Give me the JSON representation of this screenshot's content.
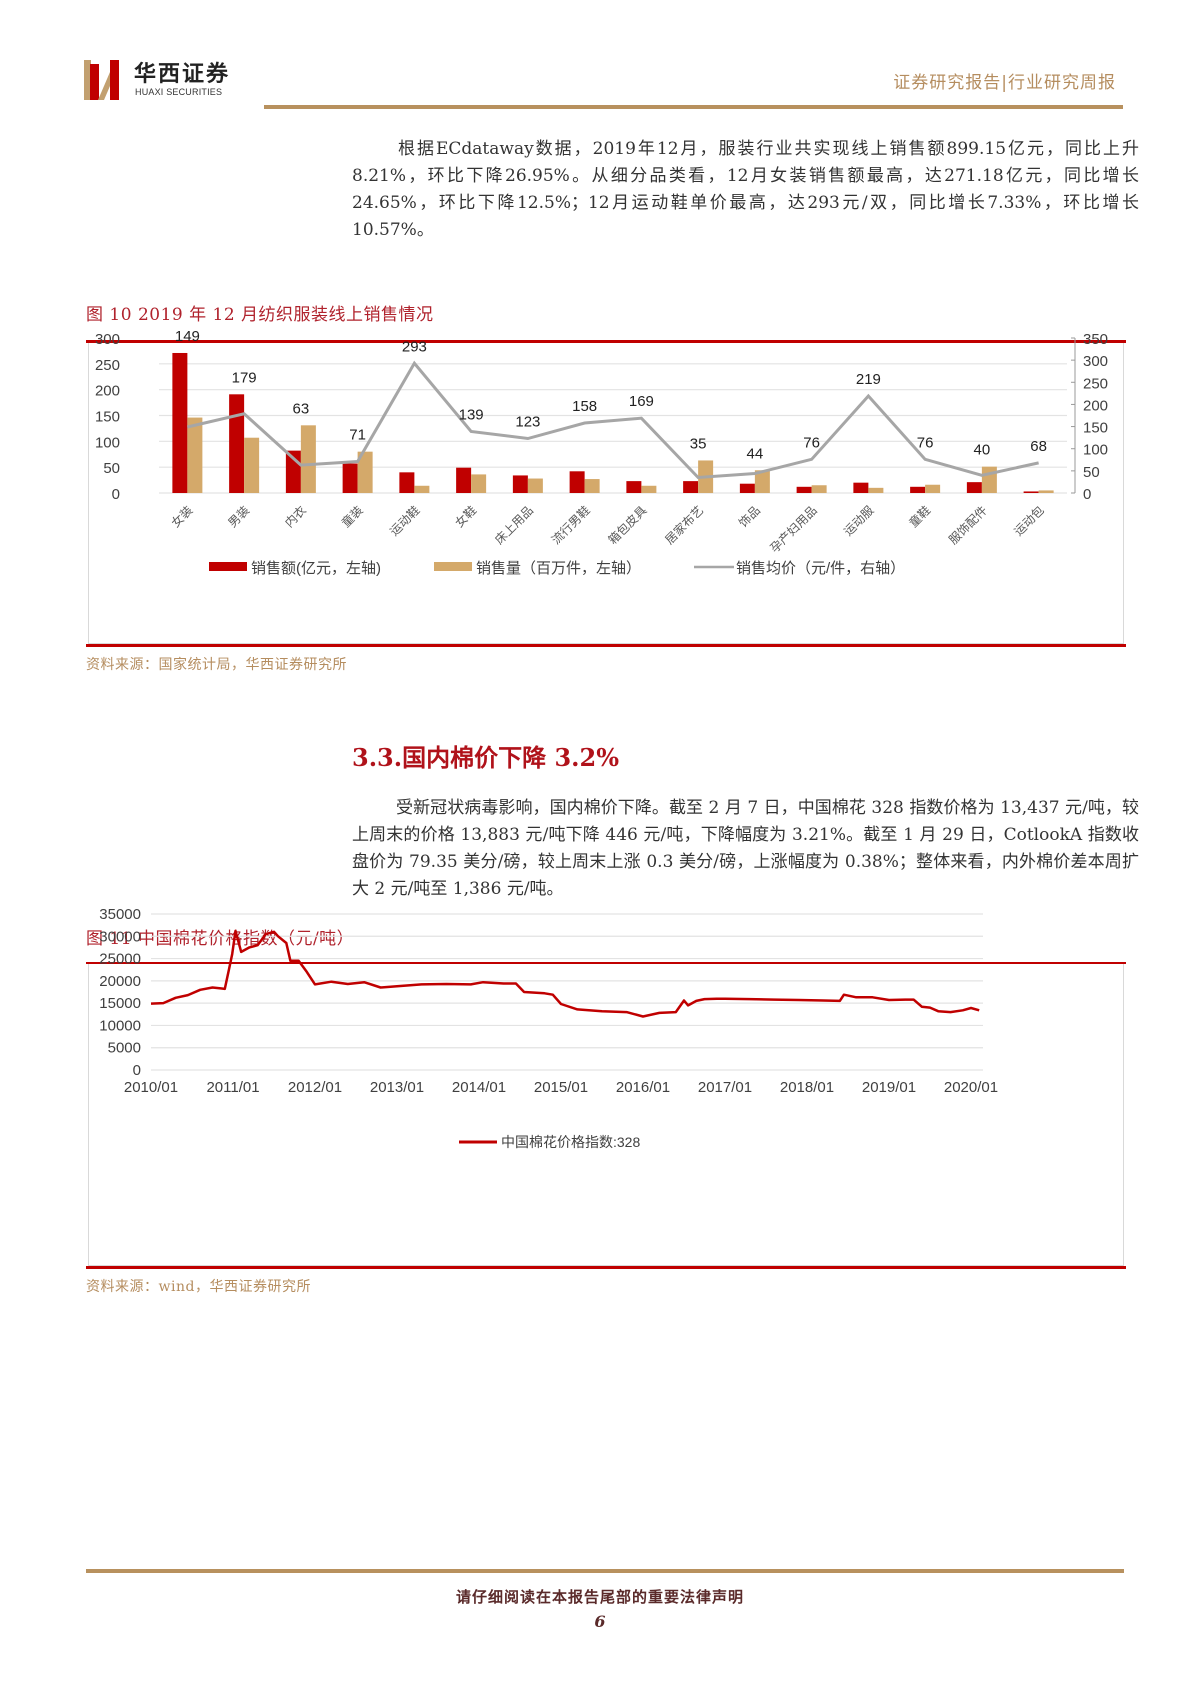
{
  "header": {
    "logo_cn": "华西证券",
    "logo_en": "HUAXI SECURITIES",
    "report_type": "证券研究报告|行业研究周报"
  },
  "para1": "根据ECdataway数据，2019年12月，服装行业共实现线上销售额899.15亿元，同比上升8.21%，环比下降26.95%。从细分品类看，12月女装销售额最高，达271.18亿元，同比增长24.65%，环比下降12.5%；12月运动鞋单价最高，达293元/双，同比增长7.33%，环比增长10.57%。",
  "figure10": {
    "caption": "图 10 2019 年 12 月纺织服装线上销售情况",
    "source": "资料来源：国家统计局，华西证券研究所"
  },
  "section": {
    "title": "3.3.国内棉价下降 3.2%"
  },
  "para2": "受新冠状病毒影响，国内棉价下降。截至 2 月 7 日，中国棉花 328 指数价格为 13,437 元/吨，较上周末的价格 13,883 元/吨下降 446 元/吨，下降幅度为 3.21%。截至 1 月 29 日，CotlookA 指数收盘价为 79.35 美分/磅，较上周末上涨 0.3 美分/磅，上涨幅度为 0.38%；整体来看，内外棉价差本周扩大 2 元/吨至 1,386 元/吨。",
  "figure11": {
    "caption": "图 11 中国棉花价格指数（元/吨）",
    "source": "资料来源：wind，华西证券研究所"
  },
  "footer": {
    "note": "请仔细阅读在本报告尾部的重要法律声明",
    "page": "6"
  },
  "colors": {
    "brand_red": "#c00000",
    "brand_gold": "#b8915e",
    "bar_gold": "#d4a96a",
    "line_gray": "#a6a6a6"
  },
  "chart_data": [
    {
      "type": "bar",
      "title": "2019年12月纺织服装线上销售情况",
      "categories": [
        "女装",
        "男装",
        "内衣",
        "童装",
        "运动鞋",
        "女鞋",
        "床上用品",
        "流行男鞋",
        "箱包皮具",
        "居家布艺",
        "饰品",
        "孕产妇用品",
        "运动服",
        "童鞋",
        "服饰配件",
        "运动包"
      ],
      "series": [
        {
          "name": "销售额(亿元，左轴)",
          "axis": "left",
          "kind": "bar",
          "color": "#c00000",
          "values": [
            271,
            191,
            82,
            57,
            40,
            49,
            34,
            42,
            23,
            23,
            18,
            12,
            20,
            12,
            21,
            3
          ]
        },
        {
          "name": "销售量（百万件，左轴）",
          "axis": "left",
          "kind": "bar",
          "color": "#d4a96a",
          "values": [
            146,
            107,
            131,
            80,
            14,
            36,
            28,
            27,
            14,
            63,
            44,
            15,
            10,
            16,
            51,
            5
          ]
        },
        {
          "name": "销售均价（元/件，右轴）",
          "axis": "right",
          "kind": "line",
          "color": "#a6a6a6",
          "values": [
            149,
            179,
            63,
            71,
            293,
            139,
            123,
            158,
            169,
            35,
            44,
            76,
            219,
            76,
            40,
            68
          ]
        }
      ],
      "left_axis": {
        "ticks": [
          0,
          50,
          100,
          150,
          200,
          250,
          300
        ],
        "ylim": [
          0,
          300
        ]
      },
      "right_axis": {
        "ticks": [
          0,
          50,
          100,
          150,
          200,
          250,
          300,
          350
        ],
        "ylim": [
          0,
          350
        ]
      },
      "grid": true,
      "legend_position": "bottom"
    },
    {
      "type": "line",
      "title": "中国棉花价格指数（元/吨）",
      "x_ticks": [
        "2010/01",
        "2011/01",
        "2012/01",
        "2013/01",
        "2014/01",
        "2015/01",
        "2016/01",
        "2017/01",
        "2018/01",
        "2019/01",
        "2020/01"
      ],
      "y_ticks": [
        0,
        5000,
        10000,
        15000,
        20000,
        25000,
        30000,
        35000
      ],
      "ylim": [
        0,
        35000
      ],
      "series": [
        {
          "name": "中国棉花价格指数:328",
          "color": "#c00000",
          "x": [
            2010.0,
            2010.15,
            2010.3,
            2010.45,
            2010.6,
            2010.75,
            2010.85,
            2010.9,
            2010.95,
            2010.99,
            2011.03,
            2011.1,
            2011.2,
            2011.3,
            2011.4,
            2011.5,
            2011.55,
            2011.65,
            2011.7,
            2011.8,
            2011.9,
            2012.0,
            2012.2,
            2012.4,
            2012.6,
            2012.8,
            2013.0,
            2013.3,
            2013.6,
            2013.9,
            2014.05,
            2014.3,
            2014.45,
            2014.55,
            2014.8,
            2014.9,
            2015.0,
            2015.2,
            2015.5,
            2015.8,
            2016.0,
            2016.2,
            2016.4,
            2016.5,
            2016.55,
            2016.65,
            2016.75,
            2016.9,
            2017.0,
            2017.3,
            2017.6,
            2017.9,
            2018.2,
            2018.4,
            2018.45,
            2018.6,
            2018.8,
            2019.0,
            2019.2,
            2019.3,
            2019.4,
            2019.5,
            2019.6,
            2019.75,
            2019.9,
            2020.0,
            2020.1
          ],
          "values": [
            14900,
            15000,
            16200,
            16800,
            18000,
            18500,
            18300,
            18200,
            22500,
            26000,
            31200,
            26500,
            27500,
            28000,
            30500,
            31000,
            30000,
            28500,
            24500,
            24500,
            22000,
            19200,
            19800,
            19300,
            19700,
            18500,
            18800,
            19200,
            19300,
            19200,
            19700,
            19400,
            19400,
            17500,
            17200,
            16900,
            14800,
            13600,
            13200,
            13000,
            12000,
            12800,
            13000,
            15600,
            14500,
            15500,
            15900,
            16000,
            16000,
            15900,
            15800,
            15700,
            15600,
            15500,
            16900,
            16300,
            16300,
            15700,
            15800,
            15800,
            14200,
            14000,
            13200,
            13000,
            13400,
            13900,
            13400
          ]
        }
      ],
      "grid": true,
      "legend_position": "bottom"
    }
  ]
}
